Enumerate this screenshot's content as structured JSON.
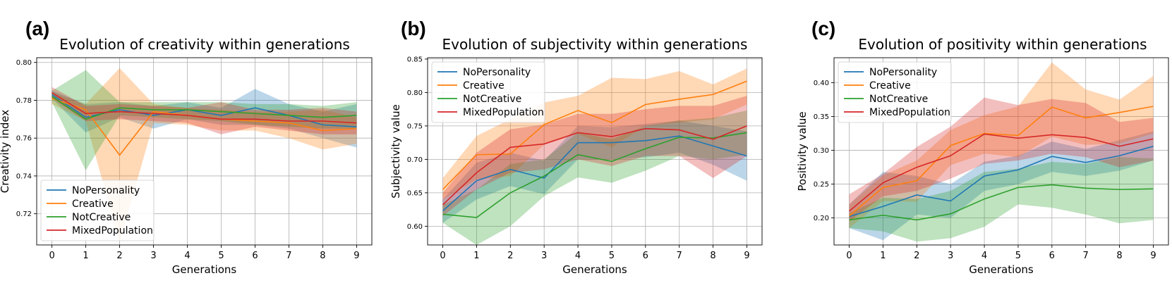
{
  "figure_title": "",
  "colors": {
    "NoPersonality": "#1f77b4",
    "Creative": "#ff7f0e",
    "NotCreative": "#2ca02c",
    "MixedPopulation": "#d62728",
    "grid": "#b0b0b0",
    "axis": "#000000"
  },
  "chart_data": [
    {
      "panel_label": "(a)",
      "type": "line",
      "title": "Evolution of creativity within generations",
      "xlabel": "Generations",
      "ylabel": "Creativity index",
      "xlim": [
        -0.45,
        9.45
      ],
      "ylim": [
        0.7035,
        0.8025
      ],
      "xticks": [
        0,
        1,
        2,
        3,
        4,
        5,
        6,
        7,
        8,
        9
      ],
      "yticks": [
        0.72,
        0.74,
        0.76,
        0.78,
        0.8
      ],
      "ytick_labels": [
        "0.72",
        "0.74",
        "0.76",
        "0.78",
        "0.80"
      ],
      "grid": true,
      "legend_position": "lower-left",
      "x": [
        0,
        1,
        2,
        3,
        4,
        5,
        6,
        7,
        8,
        9
      ],
      "series": [
        {
          "name": "NoPersonality",
          "values": [
            0.783,
            0.771,
            0.775,
            0.772,
            0.775,
            0.772,
            0.776,
            0.772,
            0.767,
            0.766
          ],
          "lower": [
            0.781,
            0.763,
            0.771,
            0.765,
            0.77,
            0.767,
            0.767,
            0.765,
            0.76,
            0.755
          ],
          "upper": [
            0.785,
            0.778,
            0.779,
            0.777,
            0.779,
            0.776,
            0.786,
            0.778,
            0.774,
            0.778
          ]
        },
        {
          "name": "Creative",
          "values": [
            0.781,
            0.775,
            0.751,
            0.774,
            0.772,
            0.77,
            0.769,
            0.768,
            0.764,
            0.765
          ],
          "lower": [
            0.778,
            0.769,
            0.705,
            0.768,
            0.767,
            0.764,
            0.764,
            0.76,
            0.754,
            0.757
          ],
          "upper": [
            0.784,
            0.778,
            0.797,
            0.778,
            0.776,
            0.775,
            0.774,
            0.774,
            0.775,
            0.771
          ]
        },
        {
          "name": "NotCreative",
          "values": [
            0.782,
            0.77,
            0.776,
            0.775,
            0.775,
            0.774,
            0.773,
            0.772,
            0.771,
            0.772
          ],
          "lower": [
            0.779,
            0.743,
            0.772,
            0.771,
            0.77,
            0.769,
            0.767,
            0.766,
            0.765,
            0.765
          ],
          "upper": [
            0.785,
            0.796,
            0.779,
            0.779,
            0.779,
            0.779,
            0.778,
            0.778,
            0.777,
            0.779
          ]
        },
        {
          "name": "MixedPopulation",
          "values": [
            0.784,
            0.773,
            0.774,
            0.773,
            0.772,
            0.77,
            0.77,
            0.769,
            0.769,
            0.768
          ],
          "lower": [
            0.781,
            0.769,
            0.77,
            0.769,
            0.768,
            0.762,
            0.766,
            0.764,
            0.762,
            0.762
          ],
          "upper": [
            0.787,
            0.777,
            0.778,
            0.777,
            0.776,
            0.779,
            0.775,
            0.775,
            0.776,
            0.774
          ]
        }
      ]
    },
    {
      "panel_label": "(b)",
      "type": "line",
      "title": "Evolution of subjectivity within generations",
      "xlabel": "Generations",
      "ylabel": "Subjectivity value",
      "xlim": [
        -0.45,
        9.45
      ],
      "ylim": [
        0.572,
        0.852
      ],
      "xticks": [
        0,
        1,
        2,
        3,
        4,
        5,
        6,
        7,
        8,
        9
      ],
      "yticks": [
        0.6,
        0.65,
        0.7,
        0.75,
        0.8,
        0.85
      ],
      "ytick_labels": [
        "0.60",
        "0.65",
        "0.70",
        "0.75",
        "0.80",
        "0.85"
      ],
      "grid": true,
      "legend_position": "upper-left",
      "x": [
        0,
        1,
        2,
        3,
        4,
        5,
        6,
        7,
        8,
        9
      ],
      "series": [
        {
          "name": "NoPersonality",
          "values": [
            0.623,
            0.668,
            0.685,
            0.672,
            0.725,
            0.725,
            0.728,
            0.735,
            0.72,
            0.705
          ],
          "lower": [
            0.605,
            0.64,
            0.66,
            0.648,
            0.7,
            0.7,
            0.703,
            0.71,
            0.692,
            0.668
          ],
          "upper": [
            0.64,
            0.695,
            0.71,
            0.698,
            0.75,
            0.748,
            0.753,
            0.758,
            0.75,
            0.742
          ]
        },
        {
          "name": "Creative",
          "values": [
            0.655,
            0.707,
            0.708,
            0.752,
            0.773,
            0.755,
            0.782,
            0.79,
            0.797,
            0.817
          ],
          "lower": [
            0.64,
            0.67,
            0.675,
            0.722,
            0.738,
            0.718,
            0.75,
            0.755,
            0.76,
            0.782
          ],
          "upper": [
            0.672,
            0.735,
            0.76,
            0.785,
            0.795,
            0.822,
            0.82,
            0.832,
            0.812,
            0.836
          ]
        },
        {
          "name": "NotCreative",
          "values": [
            0.618,
            0.613,
            0.65,
            0.675,
            0.707,
            0.697,
            0.716,
            0.733,
            0.732,
            0.74
          ],
          "lower": [
            0.605,
            0.572,
            0.6,
            0.645,
            0.673,
            0.665,
            0.683,
            0.705,
            0.7,
            0.707
          ],
          "upper": [
            0.632,
            0.655,
            0.693,
            0.7,
            0.74,
            0.73,
            0.75,
            0.758,
            0.762,
            0.773
          ]
        },
        {
          "name": "MixedPopulation",
          "values": [
            0.632,
            0.68,
            0.718,
            0.723,
            0.74,
            0.734,
            0.746,
            0.744,
            0.73,
            0.75
          ],
          "lower": [
            0.615,
            0.655,
            0.68,
            0.685,
            0.7,
            0.69,
            0.705,
            0.705,
            0.672,
            0.705
          ],
          "upper": [
            0.65,
            0.71,
            0.745,
            0.752,
            0.768,
            0.768,
            0.775,
            0.78,
            0.78,
            0.795
          ]
        }
      ]
    },
    {
      "panel_label": "(c)",
      "type": "line",
      "title": "Evolution of positivity within generations",
      "xlabel": "Generations",
      "ylabel": "Positivity value",
      "xlim": [
        -0.45,
        9.45
      ],
      "ylim": [
        0.16,
        0.437
      ],
      "xticks": [
        0,
        1,
        2,
        3,
        4,
        5,
        6,
        7,
        8,
        9
      ],
      "yticks": [
        0.2,
        0.25,
        0.3,
        0.35,
        0.4
      ],
      "ytick_labels": [
        "0.20",
        "0.25",
        "0.30",
        "0.35",
        "0.40"
      ],
      "grid": true,
      "legend_position": "upper-left",
      "x": [
        0,
        1,
        2,
        3,
        4,
        5,
        6,
        7,
        8,
        9
      ],
      "series": [
        {
          "name": "NoPersonality",
          "values": [
            0.202,
            0.217,
            0.234,
            0.225,
            0.262,
            0.271,
            0.291,
            0.282,
            0.292,
            0.306
          ],
          "lower": [
            0.185,
            0.167,
            0.205,
            0.2,
            0.24,
            0.25,
            0.268,
            0.262,
            0.27,
            0.285
          ],
          "upper": [
            0.22,
            0.268,
            0.262,
            0.25,
            0.283,
            0.292,
            0.313,
            0.302,
            0.315,
            0.328
          ]
        },
        {
          "name": "Creative",
          "values": [
            0.203,
            0.245,
            0.255,
            0.307,
            0.325,
            0.322,
            0.364,
            0.348,
            0.356,
            0.365
          ],
          "lower": [
            0.185,
            0.225,
            0.224,
            0.278,
            0.295,
            0.29,
            0.32,
            0.308,
            0.31,
            0.325
          ],
          "upper": [
            0.22,
            0.263,
            0.285,
            0.33,
            0.352,
            0.365,
            0.43,
            0.39,
            0.375,
            0.41
          ]
        },
        {
          "name": "NotCreative",
          "values": [
            0.197,
            0.204,
            0.197,
            0.206,
            0.228,
            0.245,
            0.249,
            0.244,
            0.242,
            0.243
          ],
          "lower": [
            0.185,
            0.18,
            0.165,
            0.17,
            0.187,
            0.22,
            0.215,
            0.205,
            0.192,
            0.197
          ],
          "upper": [
            0.207,
            0.23,
            0.228,
            0.24,
            0.268,
            0.273,
            0.283,
            0.28,
            0.29,
            0.288
          ]
        },
        {
          "name": "MixedPopulation",
          "values": [
            0.21,
            0.252,
            0.275,
            0.292,
            0.324,
            0.318,
            0.323,
            0.319,
            0.306,
            0.317
          ],
          "lower": [
            0.195,
            0.232,
            0.24,
            0.258,
            0.28,
            0.285,
            0.295,
            0.29,
            0.275,
            0.285
          ],
          "upper": [
            0.235,
            0.265,
            0.305,
            0.335,
            0.378,
            0.367,
            0.376,
            0.37,
            0.342,
            0.348
          ]
        }
      ]
    }
  ]
}
